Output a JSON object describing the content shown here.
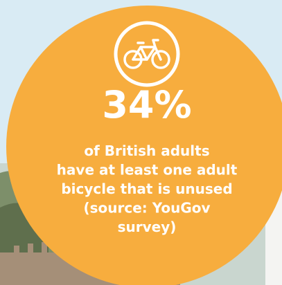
{
  "stat": "34%",
  "description": [
    "of British adults",
    "have at least one adult",
    "bicycle that is unused",
    "(source: YouGov",
    "survey)"
  ]
}
